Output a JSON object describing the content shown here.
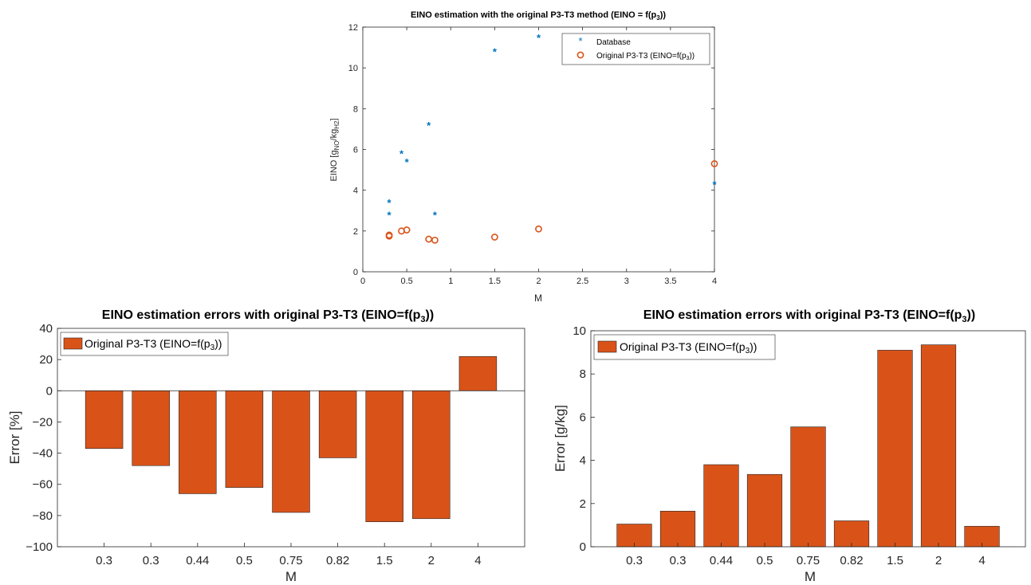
{
  "colors": {
    "database": "#0072BD",
    "model": "#D95319",
    "axis": "#262626",
    "zero_line": "#262626"
  },
  "chart_data": [
    {
      "type": "scatter",
      "title_main": "EINO estimation with the original P3-T3 method (EINO = f(p",
      "title_sub": "3",
      "title_end": "))",
      "xlabel": "M",
      "ylabel_main": "EINO [g",
      "ylabel_sub1": "NO",
      "ylabel_mid": "/kg",
      "ylabel_sub2": "H2",
      "ylabel_end": "]",
      "xlim": [
        0,
        4
      ],
      "ylim": [
        0,
        12
      ],
      "xticks": [
        0,
        0.5,
        1,
        1.5,
        2,
        2.5,
        3,
        3.5,
        4
      ],
      "xtick_labels": [
        "0",
        "0.5",
        "1",
        "1.5",
        "2",
        "2.5",
        "3",
        "3.5",
        "4"
      ],
      "yticks": [
        0,
        2,
        4,
        6,
        8,
        10,
        12
      ],
      "ytick_labels": [
        "0",
        "2",
        "4",
        "6",
        "8",
        "10",
        "12"
      ],
      "legend_position": "top-right",
      "series": [
        {
          "name": "Database",
          "marker": "asterisk",
          "x": [
            0.3,
            0.3,
            0.44,
            0.5,
            0.75,
            0.82,
            1.5,
            2,
            4
          ],
          "y": [
            2.8,
            3.4,
            5.8,
            5.4,
            7.2,
            2.8,
            10.8,
            11.5,
            4.3
          ]
        },
        {
          "name_main": "Original P3-T3 (EINO=f(p",
          "name_sub": "3",
          "name_end": "))",
          "marker": "circle",
          "x": [
            0.3,
            0.3,
            0.44,
            0.5,
            0.75,
            0.82,
            1.5,
            2,
            4
          ],
          "y": [
            1.8,
            1.75,
            2.0,
            2.05,
            1.6,
            1.55,
            1.7,
            2.1,
            5.3
          ]
        }
      ]
    },
    {
      "type": "bar",
      "title_main": "EINO estimation errors with original P3-T3 (EINO=f(p",
      "title_sub": "3",
      "title_end": "))",
      "xlabel": "M",
      "ylabel": "Error [%]",
      "categories": [
        "0.3",
        "0.3",
        "0.44",
        "0.5",
        "0.75",
        "0.82",
        "1.5",
        "2",
        "4"
      ],
      "values": [
        -37,
        -48,
        -66,
        -62,
        -78,
        -43,
        -84,
        -82,
        22
      ],
      "ylim": [
        -100,
        40
      ],
      "yticks": [
        -100,
        -80,
        -60,
        -40,
        -20,
        0,
        20,
        40
      ],
      "ytick_labels": [
        "−100",
        "−80",
        "−60",
        "−40",
        "−20",
        "0",
        "20",
        "40"
      ],
      "legend_position": "top-left",
      "series_name_main": "Original P3-T3 (EINO=f(p",
      "series_name_sub": "3",
      "series_name_end": "))"
    },
    {
      "type": "bar",
      "title_main": "EINO estimation errors with original P3-T3 (EINO=f(p",
      "title_sub": "3",
      "title_end": "))",
      "xlabel": "M",
      "ylabel": "Error [g/kg]",
      "categories": [
        "0.3",
        "0.3",
        "0.44",
        "0.5",
        "0.75",
        "0.82",
        "1.5",
        "2",
        "4"
      ],
      "values": [
        1.05,
        1.65,
        3.8,
        3.35,
        5.55,
        1.2,
        9.1,
        9.35,
        0.95
      ],
      "ylim": [
        0,
        10
      ],
      "yticks": [
        0,
        2,
        4,
        6,
        8,
        10
      ],
      "ytick_labels": [
        "0",
        "2",
        "4",
        "6",
        "8",
        "10"
      ],
      "legend_position": "top-left",
      "series_name_main": "Original P3-T3 (EINO=f(p",
      "series_name_sub": "3",
      "series_name_end": "))"
    }
  ]
}
